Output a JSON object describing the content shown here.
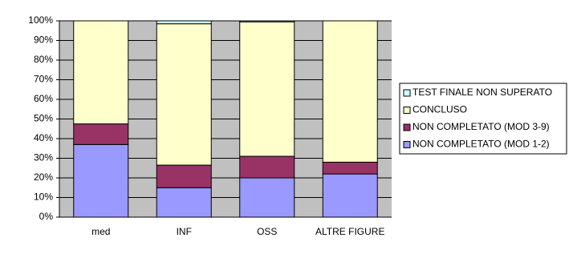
{
  "chart_data": {
    "type": "stacked_bar_percent",
    "categories": [
      "med",
      "INF",
      "OSS",
      "ALTRE FIGURE"
    ],
    "series": [
      {
        "name": "NON COMPLETATO (MOD 1-2)",
        "color": "#9999ff",
        "values": [
          37,
          15,
          20,
          22
        ]
      },
      {
        "name": "NON COMPLETATO (MOD 3-9)",
        "color": "#993366",
        "values": [
          10.5,
          11.5,
          11,
          6
        ]
      },
      {
        "name": "CONCLUSO",
        "color": "#ffffcc",
        "values": [
          52.5,
          72,
          68.5,
          72
        ]
      },
      {
        "name": "TEST FINALE NON SUPERATO",
        "color": "#ccffff",
        "values": [
          0,
          1.5,
          0.5,
          0
        ]
      }
    ],
    "ylim": [
      0,
      100
    ],
    "yticks": [
      {
        "value": 0,
        "label": "0%"
      },
      {
        "value": 10,
        "label": "10%"
      },
      {
        "value": 20,
        "label": "20%"
      },
      {
        "value": 30,
        "label": "30%"
      },
      {
        "value": 40,
        "label": "40%"
      },
      {
        "value": 50,
        "label": "50%"
      },
      {
        "value": 60,
        "label": "60%"
      },
      {
        "value": 70,
        "label": "70%"
      },
      {
        "value": 80,
        "label": "80%"
      },
      {
        "value": 90,
        "label": "90%"
      },
      {
        "value": 100,
        "label": "100%"
      }
    ],
    "grid": true,
    "legend": "right",
    "plot_background": "#c0c0c0"
  }
}
